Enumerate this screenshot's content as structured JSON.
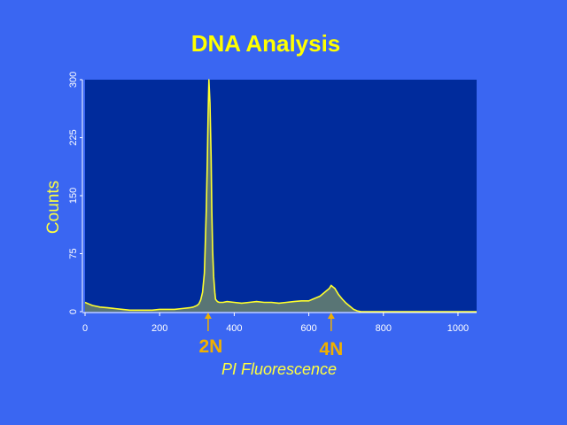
{
  "chart_data": {
    "type": "area",
    "title": "DNA Analysis",
    "xlabel": "PI Fluorescence",
    "ylabel": "Counts",
    "xlim": [
      0,
      1050
    ],
    "ylim": [
      0,
      300
    ],
    "x_ticks": [
      "0",
      "200",
      "400",
      "600",
      "800",
      "1000"
    ],
    "y_ticks": [
      "0",
      "75",
      "150",
      "225",
      "300"
    ],
    "grid": false,
    "series": [
      {
        "x": [
          0,
          10,
          20,
          30,
          40,
          60,
          80,
          100,
          120,
          140,
          160,
          180,
          200,
          220,
          240,
          260,
          280,
          290,
          300,
          305,
          310,
          315,
          320,
          322,
          325,
          328,
          330,
          332,
          335,
          338,
          340,
          342,
          345,
          348,
          350,
          355,
          360,
          370,
          380,
          400,
          420,
          440,
          460,
          480,
          500,
          520,
          540,
          560,
          580,
          600,
          610,
          620,
          630,
          640,
          650,
          655,
          660,
          665,
          670,
          675,
          680,
          690,
          700,
          710,
          720,
          730,
          740,
          760,
          800,
          900,
          1000,
          1050
        ],
        "y": [
          12,
          10,
          8,
          7,
          6,
          5,
          4,
          3,
          2,
          2,
          2,
          2,
          3,
          3,
          3,
          4,
          5,
          6,
          8,
          10,
          15,
          25,
          50,
          80,
          130,
          200,
          255,
          300,
          270,
          200,
          130,
          80,
          45,
          25,
          16,
          13,
          12,
          12,
          13,
          12,
          11,
          12,
          13,
          12,
          12,
          11,
          12,
          13,
          14,
          14,
          16,
          18,
          20,
          24,
          28,
          30,
          34,
          32,
          30,
          26,
          22,
          16,
          11,
          7,
          3,
          1,
          0,
          0,
          0,
          0,
          0,
          0
        ]
      }
    ],
    "annotations": [
      {
        "label": "2N",
        "x": 330
      },
      {
        "label": "4N",
        "x": 660
      }
    ],
    "colors": {
      "background": "#3a66f2",
      "plot_area": "#002b9c",
      "series": "#ffff2e",
      "title": "#ffff00",
      "markers": "#f0b000",
      "axis_text": "#ffffff",
      "xlabel": "#ffff40",
      "ylabel": "#ffff40"
    }
  }
}
